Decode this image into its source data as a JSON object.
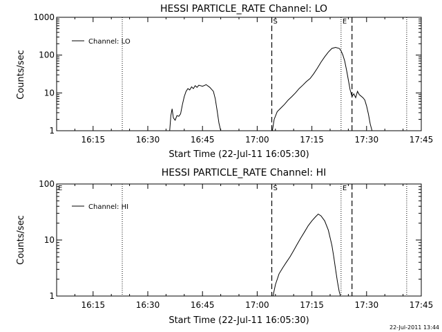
{
  "footer": {
    "timestamp": "22-Jul-2011 13:44"
  },
  "chart_data": [
    {
      "type": "line",
      "title": "HESSI PARTICLE_RATE Channel: LO",
      "xlabel": "Start Time (22-Jul-11 16:05:30)",
      "ylabel": "Counts/sec",
      "y_scale": "log",
      "xlim": [
        "16:05",
        "17:45"
      ],
      "ylim": [
        1,
        1000
      ],
      "x_tick_labels": [
        "16:15",
        "16:30",
        "16:45",
        "17:00",
        "17:15",
        "17:30",
        "17:45"
      ],
      "y_tick_labels": [
        "1",
        "10",
        "100",
        "1000"
      ],
      "legend": {
        "position": "top-left",
        "entries": [
          "Channel: LO"
        ]
      },
      "dotted_lines_x": [
        "16:23",
        "17:23",
        "17:41"
      ],
      "dashed_lines_x": [
        "17:04",
        "17:26"
      ],
      "markers": [
        {
          "label": "S",
          "x": "17:04"
        },
        {
          "label": "E",
          "x": "17:23"
        }
      ],
      "series": [
        {
          "name": "Channel: LO",
          "segments": [
            [
              [
                "16:36:00",
                1.0
              ],
              [
                "16:36:20",
                2.5
              ],
              [
                "16:36:40",
                3.8
              ],
              [
                "16:37:00",
                2.2
              ],
              [
                "16:37:30",
                1.9
              ],
              [
                "16:38:00",
                2.5
              ],
              [
                "16:38:30",
                2.4
              ],
              [
                "16:39:00",
                2.8
              ],
              [
                "16:39:30",
                5.0
              ],
              [
                "16:40:00",
                8.0
              ],
              [
                "16:40:30",
                11.0
              ],
              [
                "16:41:00",
                13.0
              ],
              [
                "16:41:30",
                12.0
              ],
              [
                "16:42:00",
                14.5
              ],
              [
                "16:42:30",
                13.0
              ],
              [
                "16:43:00",
                15.5
              ],
              [
                "16:43:30",
                14.0
              ],
              [
                "16:44:00",
                16.0
              ],
              [
                "16:45:00",
                15.0
              ],
              [
                "16:46:00",
                16.5
              ],
              [
                "16:47:00",
                14.0
              ],
              [
                "16:48:00",
                11.0
              ],
              [
                "16:48:30",
                7.0
              ],
              [
                "16:49:00",
                3.5
              ],
              [
                "16:49:30",
                1.6
              ],
              [
                "16:50:00",
                1.0
              ]
            ],
            [
              [
                "17:04:10",
                1.0
              ],
              [
                "17:04:40",
                2.0
              ],
              [
                "17:05:30",
                3.2
              ],
              [
                "17:06:30",
                4.0
              ],
              [
                "17:07:30",
                5.0
              ],
              [
                "17:08:30",
                6.5
              ],
              [
                "17:09:30",
                8.0
              ],
              [
                "17:10:30",
                10.0
              ],
              [
                "17:11:30",
                13.0
              ],
              [
                "17:12:30",
                16.0
              ],
              [
                "17:13:30",
                20.0
              ],
              [
                "17:14:30",
                24.0
              ],
              [
                "17:15:30",
                32.0
              ],
              [
                "17:16:30",
                45.0
              ],
              [
                "17:17:30",
                65.0
              ],
              [
                "17:18:30",
                90.0
              ],
              [
                "17:19:30",
                120.0
              ],
              [
                "17:20:30",
                150.0
              ],
              [
                "17:21:30",
                160.0
              ],
              [
                "17:22:30",
                150.0
              ],
              [
                "17:23:00",
                130.0
              ],
              [
                "17:23:30",
                100.0
              ],
              [
                "17:24:00",
                70.0
              ],
              [
                "17:24:30",
                40.0
              ],
              [
                "17:25:00",
                22.0
              ],
              [
                "17:25:30",
                12.0
              ],
              [
                "17:26:00",
                8.0
              ],
              [
                "17:26:30",
                9.5
              ],
              [
                "17:27:00",
                7.5
              ],
              [
                "17:27:30",
                11.0
              ],
              [
                "17:28:00",
                9.0
              ],
              [
                "17:29:00",
                7.5
              ],
              [
                "17:29:30",
                6.5
              ],
              [
                "17:30:00",
                4.5
              ],
              [
                "17:30:30",
                2.8
              ],
              [
                "17:31:00",
                1.5
              ],
              [
                "17:31:30",
                1.0
              ]
            ]
          ]
        }
      ]
    },
    {
      "type": "line",
      "title": "HESSI PARTICLE_RATE Channel: HI",
      "xlabel": "Start Time (22-Jul-11 16:05:30)",
      "ylabel": "Counts/sec",
      "y_scale": "log",
      "xlim": [
        "16:05",
        "17:45"
      ],
      "ylim": [
        1,
        100
      ],
      "x_tick_labels": [
        "16:15",
        "16:30",
        "16:45",
        "17:00",
        "17:15",
        "17:30",
        "17:45"
      ],
      "y_tick_labels": [
        "1",
        "10",
        "100"
      ],
      "legend": {
        "position": "top-left",
        "entries": [
          "Channel: HI"
        ]
      },
      "dotted_lines_x": [
        "16:23",
        "17:23",
        "17:41"
      ],
      "dashed_lines_x": [
        "17:04",
        "17:26"
      ],
      "markers": [
        {
          "label": "E",
          "x": "16:05"
        },
        {
          "label": "S",
          "x": "17:04"
        },
        {
          "label": "E",
          "x": "17:23"
        }
      ],
      "series": [
        {
          "name": "Channel: HI",
          "segments": [
            [
              [
                "17:04:20",
                1.0
              ],
              [
                "17:05:00",
                1.6
              ],
              [
                "17:06:00",
                2.5
              ],
              [
                "17:07:00",
                3.2
              ],
              [
                "17:08:00",
                4.0
              ],
              [
                "17:09:00",
                5.0
              ],
              [
                "17:10:00",
                6.5
              ],
              [
                "17:11:00",
                8.5
              ],
              [
                "17:12:00",
                11.0
              ],
              [
                "17:13:00",
                14.0
              ],
              [
                "17:14:00",
                18.0
              ],
              [
                "17:15:00",
                22.0
              ],
              [
                "17:16:00",
                26.0
              ],
              [
                "17:16:45",
                29.0
              ],
              [
                "17:17:30",
                27.0
              ],
              [
                "17:18:30",
                22.0
              ],
              [
                "17:19:30",
                15.0
              ],
              [
                "17:20:30",
                8.0
              ],
              [
                "17:21:00",
                5.0
              ],
              [
                "17:21:30",
                3.0
              ],
              [
                "17:22:00",
                1.8
              ],
              [
                "17:22:30",
                1.2
              ],
              [
                "17:22:50",
                1.0
              ]
            ]
          ]
        }
      ]
    }
  ]
}
